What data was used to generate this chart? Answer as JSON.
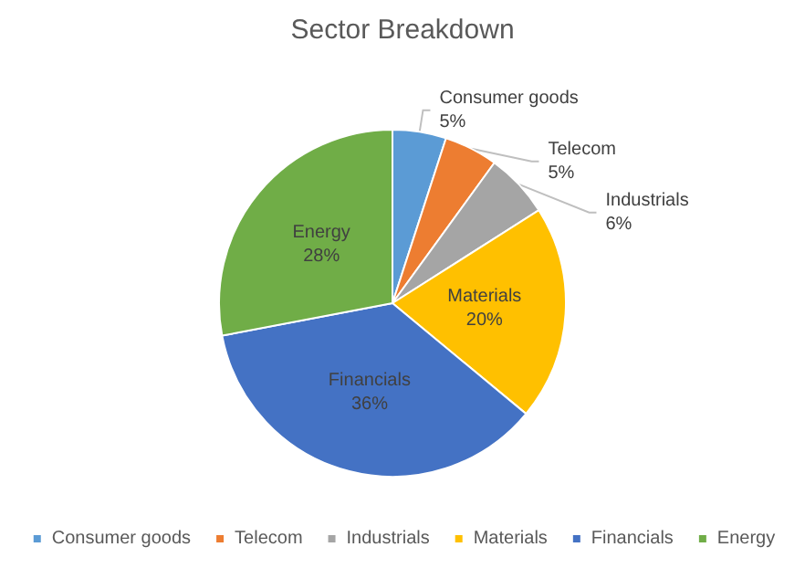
{
  "chart_data": {
    "type": "pie",
    "title": "Sector Breakdown",
    "categories": [
      "Consumer goods",
      "Telecom",
      "Industrials",
      "Materials",
      "Financials",
      "Energy"
    ],
    "values": [
      5,
      5,
      6,
      20,
      36,
      28
    ],
    "value_labels": [
      "5%",
      "5%",
      "6%",
      "20%",
      "36%",
      "28%"
    ],
    "colors": [
      "#5b9bd5",
      "#ed7d31",
      "#a5a5a5",
      "#ffc000",
      "#4472c4",
      "#70ad47"
    ],
    "legend": "bottom"
  }
}
